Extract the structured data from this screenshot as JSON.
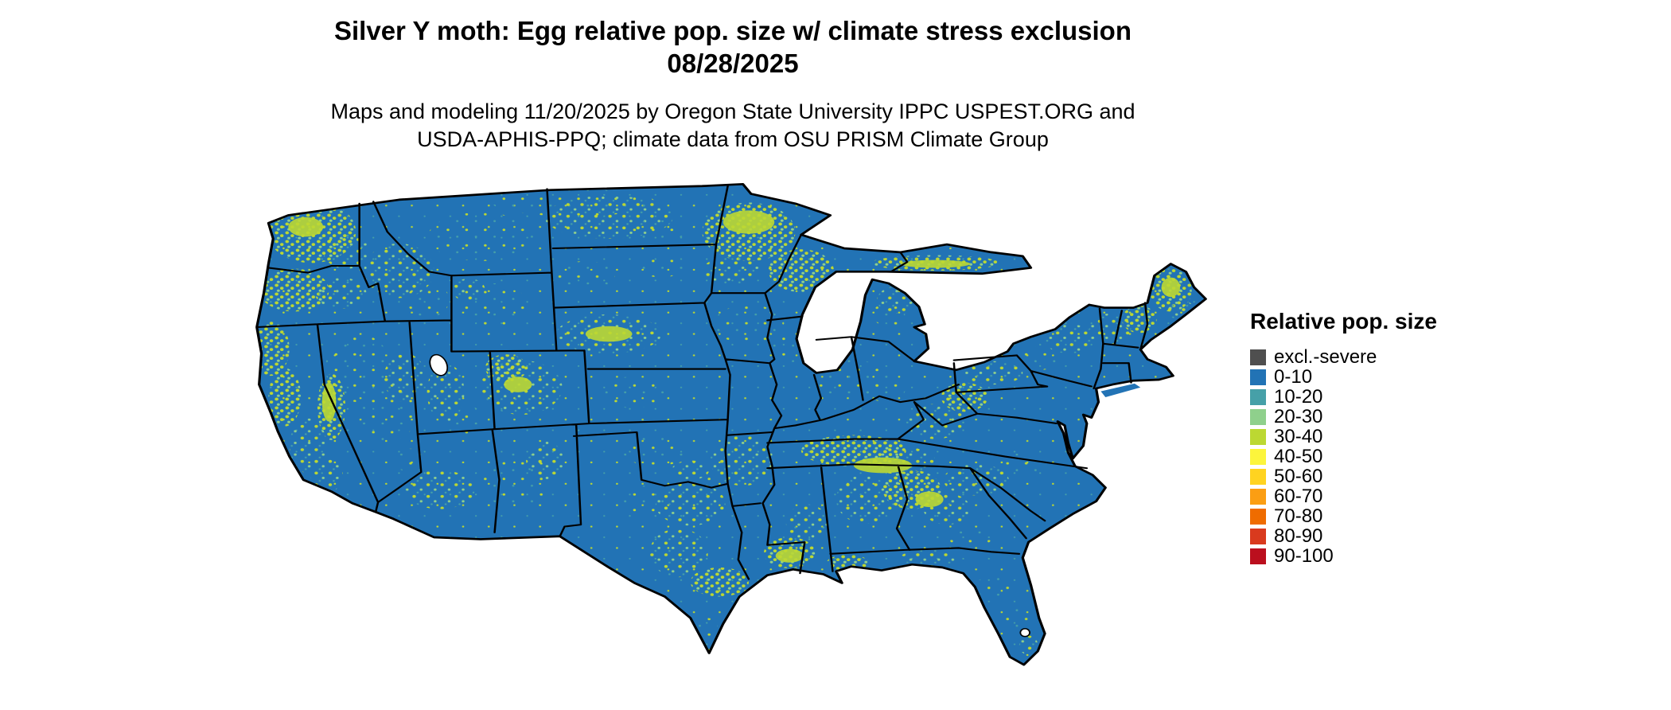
{
  "header": {
    "title_line1": "Silver Y moth: Egg relative pop. size w/ climate stress exclusion",
    "title_line2": "08/28/2025",
    "subtitle_line1": "Maps and modeling 11/20/2025 by Oregon State University IPPC USPEST.ORG and",
    "subtitle_line2": "USDA-APHIS-PPQ; climate data from OSU PRISM Climate Group"
  },
  "map": {
    "description": "Continental US raster map of relative population size; mostly 0-10 blue with speckled 10-40 green/yellow-green areas along mountain ranges, upper Midwest, Gulf states, Southeast and Northeast",
    "base_color": "#2273B5",
    "border_color": "#000000",
    "speckle_color_primary": "#BCD832",
    "speckle_color_secondary": "#8FD08C",
    "speckle_color_teal": "#46A0A8"
  },
  "legend": {
    "title": "Relative pop. size",
    "items": [
      {
        "label": "excl.-severe",
        "color": "#4F4F4F"
      },
      {
        "label": "0-10",
        "color": "#2273B5"
      },
      {
        "label": "10-20",
        "color": "#46A0A8"
      },
      {
        "label": "20-30",
        "color": "#8FD08C"
      },
      {
        "label": "30-40",
        "color": "#BCD832"
      },
      {
        "label": "40-50",
        "color": "#FCF53C"
      },
      {
        "label": "50-60",
        "color": "#FFD320"
      },
      {
        "label": "60-70",
        "color": "#FB9E13"
      },
      {
        "label": "70-80",
        "color": "#EF6C00"
      },
      {
        "label": "80-90",
        "color": "#D93A1E"
      },
      {
        "label": "90-100",
        "color": "#BB0F1E"
      }
    ]
  }
}
